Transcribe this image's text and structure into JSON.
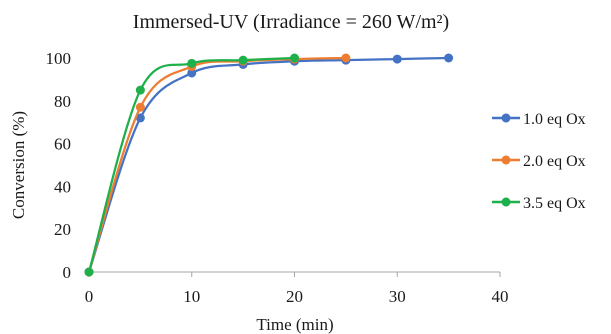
{
  "chart_data": {
    "type": "line",
    "title": "Immersed-UV (Irradiance = 260 W/m²)",
    "xlabel": "Time (min)",
    "ylabel": "Conversion (%)",
    "xlim": [
      0,
      40
    ],
    "ylim": [
      0,
      100
    ],
    "xticks": [
      0,
      10,
      20,
      30,
      40
    ],
    "yticks": [
      0,
      20,
      40,
      60,
      80,
      100
    ],
    "grid": false,
    "smooth": true,
    "legend_position": "right",
    "series": [
      {
        "name": "1.0 eq Ox",
        "color": "#4472C4",
        "x": [
          0,
          5,
          10,
          15,
          20,
          25,
          30,
          35
        ],
        "y": [
          0,
          72,
          93,
          97,
          98.5,
          99,
          99.5,
          100
        ]
      },
      {
        "name": "2.0 eq Ox",
        "color": "#ED7D31",
        "x": [
          0,
          5,
          10,
          15,
          20,
          25
        ],
        "y": [
          0,
          77,
          96,
          98.5,
          99.5,
          100
        ]
      },
      {
        "name": "3.5 eq Ox",
        "color": "#1DB04B",
        "x": [
          0,
          5,
          10,
          15,
          20
        ],
        "y": [
          0,
          85,
          97.5,
          99,
          100
        ]
      }
    ]
  }
}
